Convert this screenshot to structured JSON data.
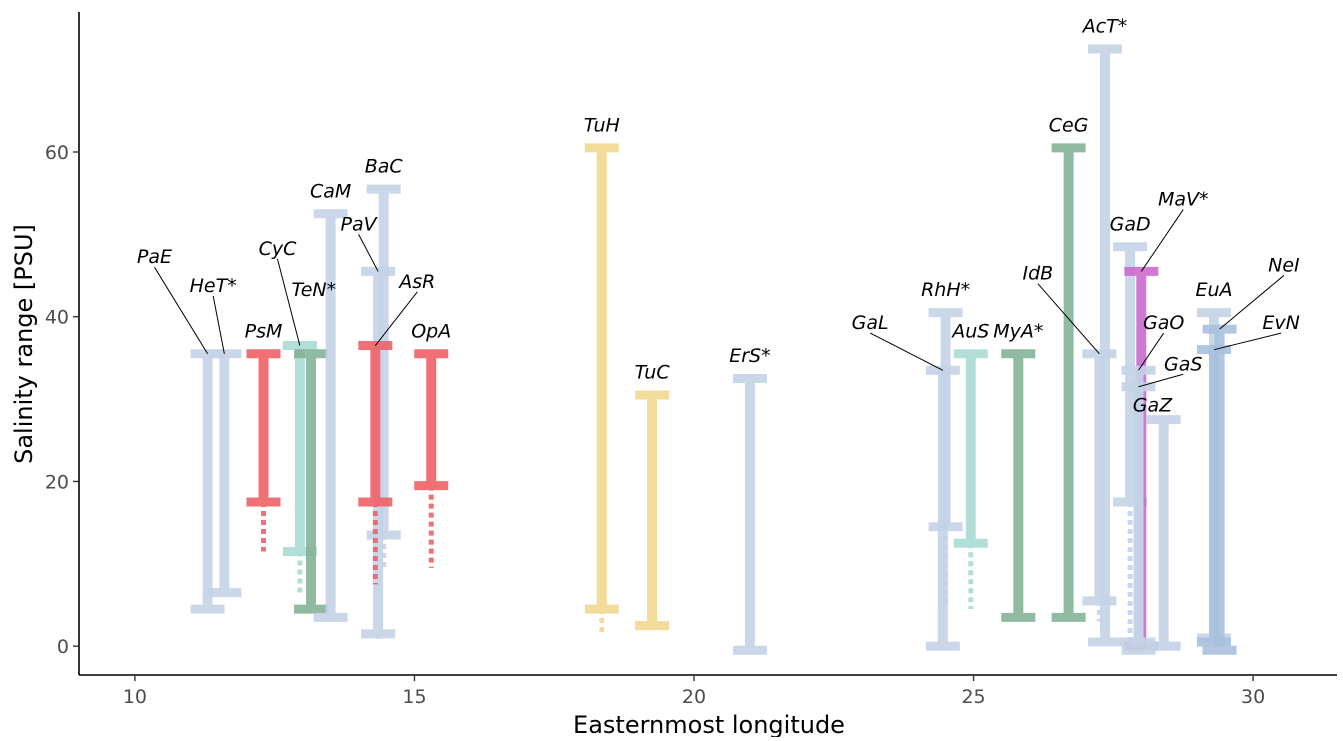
{
  "chart_data": {
    "type": "range-bars",
    "xlabel": "Easternmost longitude",
    "ylabel": "Salinity range [PSU]",
    "xlim": [
      9,
      31.5
    ],
    "ylim": [
      -3.5,
      77
    ],
    "xticks": [
      10,
      15,
      20,
      25,
      30
    ],
    "yticks": [
      0,
      20,
      40,
      60
    ],
    "grid": false,
    "legend": "none",
    "colors": {
      "blue": "#c4d3e7",
      "steel": "#a9c0dd",
      "red": "#ee6268",
      "teal": "#a9dcd4",
      "green": "#84b398",
      "yellow": "#f2d98e",
      "purple": "#cc6bcf"
    },
    "bars": [
      {
        "label": "PaE",
        "x": 11.3,
        "low": 4.5,
        "high": 35.5,
        "color": "blue",
        "label_x": 10.35,
        "label_y": 46.5
      },
      {
        "label": "HeT*",
        "x": 11.6,
        "low": 6.5,
        "high": 35.5,
        "color": "blue",
        "label_x": 11.4,
        "label_y": 43
      },
      {
        "label": "PsM",
        "x": 12.3,
        "low": 17.5,
        "high": 35.5,
        "dashed_low": 11.5,
        "color": "red",
        "label_x": 12.3,
        "label_y": 37.5
      },
      {
        "label": "CyC",
        "x": 12.95,
        "low": 11.5,
        "high": 36.5,
        "dashed_low": 6.5,
        "color": "teal",
        "label_x": 12.55,
        "label_y": 47.5
      },
      {
        "label": "TeN*",
        "x": 13.15,
        "low": 4.5,
        "high": 35.5,
        "color": "green",
        "label_x": 13.2,
        "label_y": 42.5
      },
      {
        "label": "CaM",
        "x": 13.5,
        "low": 3.5,
        "high": 52.5,
        "color": "blue",
        "label_x": 13.5,
        "label_y": 54.5
      },
      {
        "label": "BaC",
        "x": 14.45,
        "low": 13.5,
        "high": 55.5,
        "dashed_low": 9.5,
        "color": "blue",
        "label_x": 14.45,
        "label_y": 57.5
      },
      {
        "label": "PaV",
        "x": 14.35,
        "low": 1.5,
        "high": 45.5,
        "dashed_low": 0.5,
        "color": "blue",
        "label_x": 14.0,
        "label_y": 50.5
      },
      {
        "label": "AsR",
        "x": 14.3,
        "low": 17.5,
        "high": 36.5,
        "dashed_low": 7.5,
        "color": "red",
        "label_x": 15.05,
        "label_y": 43.5
      },
      {
        "label": "OpA",
        "x": 15.3,
        "low": 19.5,
        "high": 35.5,
        "dashed_low": 9.5,
        "color": "red",
        "label_x": 15.3,
        "label_y": 37.5
      },
      {
        "label": "TuH",
        "x": 18.35,
        "low": 4.5,
        "high": 60.5,
        "dashed_low": 1.5,
        "color": "yellow",
        "label_x": 18.35,
        "label_y": 62.5
      },
      {
        "label": "TuC",
        "x": 19.25,
        "low": 2.5,
        "high": 30.5,
        "color": "yellow",
        "label_x": 19.25,
        "label_y": 32.5
      },
      {
        "label": "ErS*",
        "x": 21.0,
        "low": -0.5,
        "high": 32.5,
        "color": "blue",
        "label_x": 21.0,
        "label_y": 34.5
      },
      {
        "label": "GaL",
        "x": 24.45,
        "low": 0.0,
        "high": 33.5,
        "color": "blue",
        "label_x": 23.15,
        "label_y": 38.5
      },
      {
        "label": "RhH*",
        "x": 24.5,
        "low": 14.5,
        "high": 40.5,
        "dashed_low": 5.0,
        "color": "blue",
        "label_x": 24.5,
        "label_y": 42.5
      },
      {
        "label": "AuS",
        "x": 24.95,
        "low": 12.5,
        "high": 35.5,
        "dashed_low": 4.5,
        "color": "teal",
        "label_x": 24.95,
        "label_y": 37.5
      },
      {
        "label": "MyA*",
        "x": 25.8,
        "low": 3.5,
        "high": 35.5,
        "color": "green",
        "label_x": 25.8,
        "label_y": 37.5
      },
      {
        "label": "CeG",
        "x": 26.7,
        "low": 3.5,
        "high": 60.5,
        "color": "green",
        "label_x": 26.7,
        "label_y": 62.5
      },
      {
        "label": "AcT*",
        "x": 27.35,
        "low": 0.5,
        "high": 72.5,
        "color": "blue",
        "label_x": 27.35,
        "label_y": 74.5
      },
      {
        "label": "IdB",
        "x": 27.25,
        "low": 5.5,
        "high": 35.5,
        "dashed_low": 3.0,
        "color": "blue",
        "label_x": 26.15,
        "label_y": 44.5
      },
      {
        "label": "GaD",
        "x": 27.8,
        "low": 17.5,
        "high": 48.5,
        "dashed_low": 0.5,
        "color": "blue",
        "label_x": 27.8,
        "label_y": 50.5
      },
      {
        "label": "MaV*",
        "x": 28.0,
        "low": 0.0,
        "high": 45.5,
        "color": "purple",
        "label_x": 28.75,
        "label_y": 53.5
      },
      {
        "label": "GaO",
        "x": 27.95,
        "low": -0.5,
        "high": 33.5,
        "color": "blue",
        "label_x": 28.4,
        "label_y": 38.5
      },
      {
        "label": "GaS",
        "x": 27.95,
        "low": 0.5,
        "high": 31.5,
        "color": "blue",
        "label_x": 28.75,
        "label_y": 33.5
      },
      {
        "label": "GaZ",
        "x": 28.4,
        "low": 0.0,
        "high": 27.5,
        "color": "blue",
        "label_x": 28.2,
        "label_y": 28.5
      },
      {
        "label": "EuA",
        "x": 29.3,
        "low": 1.0,
        "high": 40.5,
        "color": "blue",
        "label_x": 29.3,
        "label_y": 42.5
      },
      {
        "label": "NeI",
        "x": 29.4,
        "low": -0.5,
        "high": 38.5,
        "color": "steel",
        "label_x": 30.55,
        "label_y": 45.5
      },
      {
        "label": "EvN",
        "x": 29.3,
        "low": 0.5,
        "high": 36.0,
        "color": "steel",
        "label_x": 30.5,
        "label_y": 38.5
      }
    ]
  }
}
